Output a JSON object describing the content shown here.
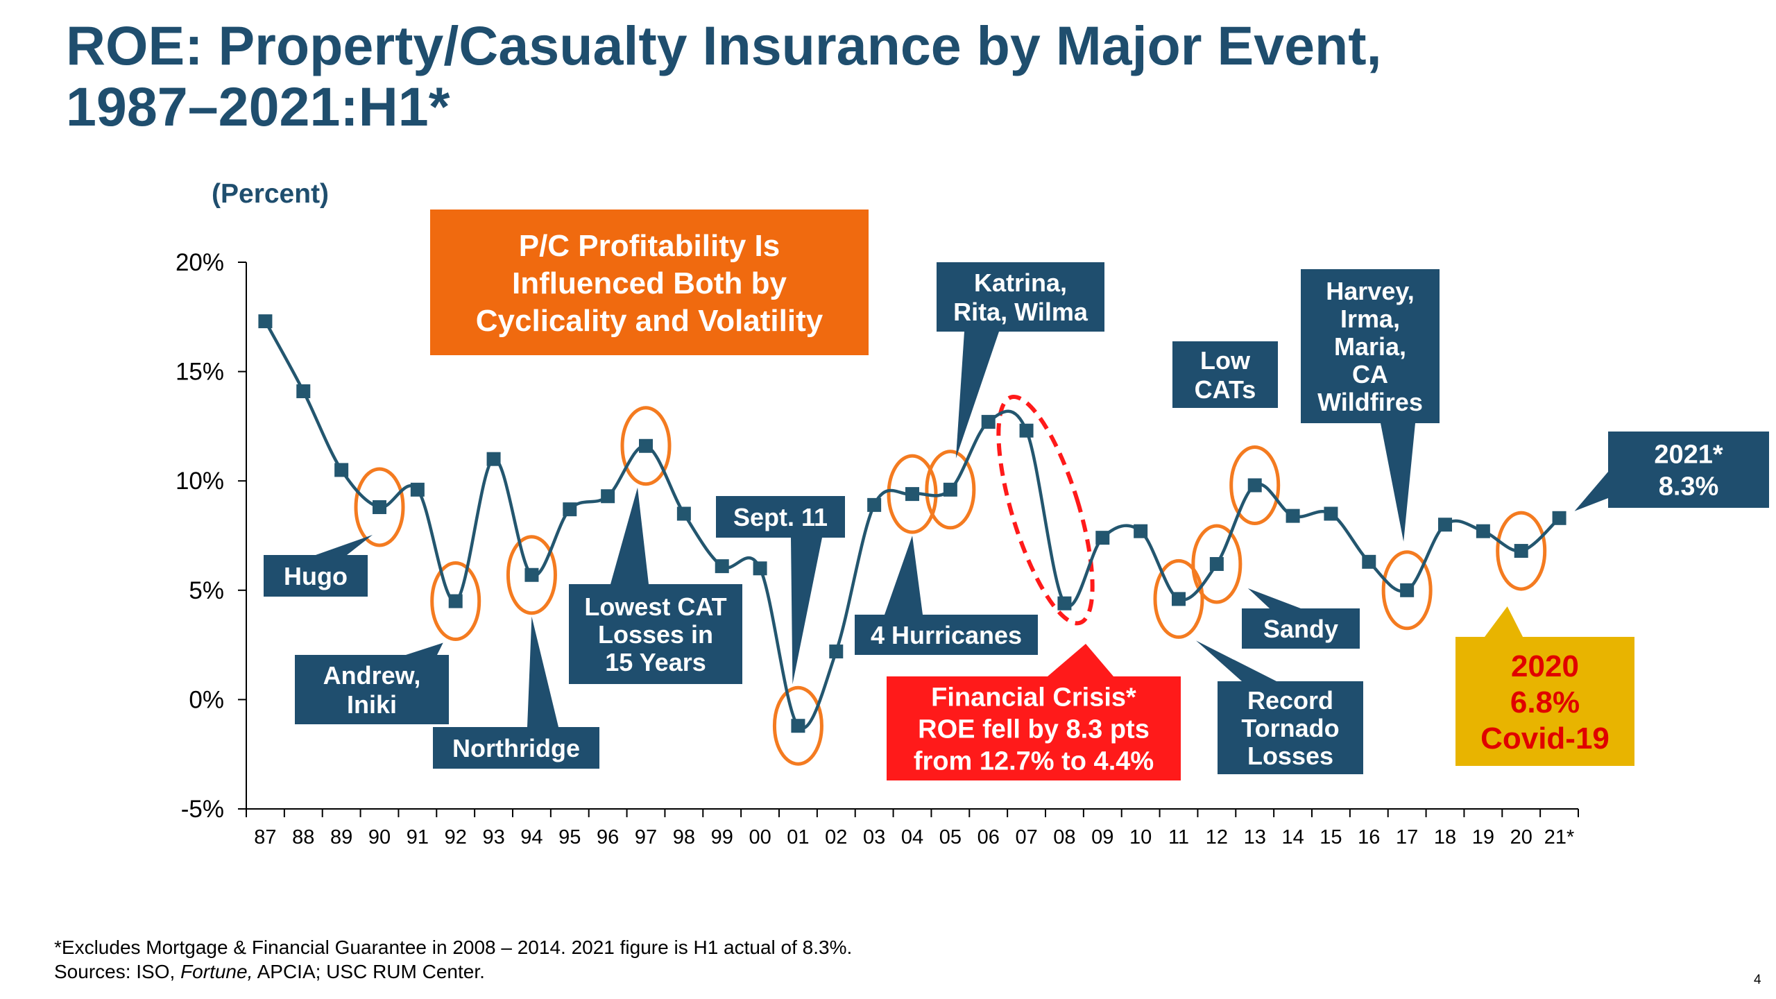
{
  "title_line1": "ROE: Property/Casualty Insurance by Major Event,",
  "title_line2": "1987–2021:H1*",
  "unit_label": "(Percent)",
  "footnote": {
    "line1": "*Excludes Mortgage & Financial Guarantee in 2008 – 2014.  2021 figure is H1 actual of 8.3%.",
    "line2_pre": "Sources: ISO, ",
    "line2_italic": "Fortune,",
    "line2_post": " APCIA; USC RUM Center."
  },
  "page_number": "4",
  "colors": {
    "navy": "#1f4e6e",
    "line": "#23566f",
    "orange_circle": "#f47b20",
    "orange_box": "#f06a0f",
    "red": "#ff1a1a",
    "gold": "#e8b400"
  },
  "chart_data": {
    "type": "line",
    "x": [
      "87",
      "88",
      "89",
      "90",
      "91",
      "92",
      "93",
      "94",
      "95",
      "96",
      "97",
      "98",
      "99",
      "00",
      "01",
      "02",
      "03",
      "04",
      "05",
      "06",
      "07",
      "08",
      "09",
      "10",
      "11",
      "12",
      "13",
      "14",
      "15",
      "16",
      "17",
      "18",
      "19",
      "20",
      "21*"
    ],
    "values": [
      17.3,
      14.1,
      10.5,
      8.8,
      9.6,
      4.5,
      11.0,
      5.7,
      8.7,
      9.3,
      11.6,
      8.5,
      6.1,
      6.0,
      -1.2,
      2.2,
      8.9,
      9.4,
      9.6,
      12.7,
      12.3,
      4.4,
      7.4,
      7.7,
      4.6,
      6.2,
      9.8,
      8.4,
      8.5,
      6.3,
      5.0,
      8.0,
      7.7,
      6.8,
      8.3
    ],
    "yticks": [
      "20%",
      "15%",
      "10%",
      "5%",
      "0%",
      "-5%"
    ],
    "ylim": [
      -5,
      20
    ],
    "ytick_values": [
      20,
      15,
      10,
      5,
      0,
      -5
    ],
    "grid": false,
    "circled_years": [
      "90",
      "92",
      "94",
      "97",
      "01",
      "04",
      "05",
      "11",
      "12",
      "13",
      "17",
      "20"
    ],
    "dashed_ellipse_years": [
      "07",
      "08"
    ],
    "annotations": {
      "headline": [
        "P/C Profitability Is",
        "Influenced Both by",
        "Cyclicality and Volatility"
      ],
      "hugo": "Hugo",
      "andrew": [
        "Andrew,",
        "Iniki"
      ],
      "northridge": "Northridge",
      "lowest_cat": [
        "Lowest CAT",
        "Losses in",
        "15 Years"
      ],
      "sept11": "Sept. 11",
      "hurricanes4": "4 Hurricanes",
      "katrina": [
        "Katrina,",
        "Rita, Wilma"
      ],
      "financial_crisis": [
        "Financial Crisis*",
        "ROE fell by 8.3 pts",
        "from 12.7% to 4.4%"
      ],
      "low_cats": [
        "Low",
        "CATs"
      ],
      "sandy": "Sandy",
      "record_tornado": [
        "Record",
        "Tornado",
        "Losses"
      ],
      "harvey": [
        "Harvey,",
        "Irma,",
        "Maria,",
        "CA",
        "Wildfires"
      ],
      "covid": [
        "2020",
        "6.8%",
        "Covid-19"
      ],
      "y2021": [
        "2021*",
        "8.3%"
      ]
    }
  }
}
